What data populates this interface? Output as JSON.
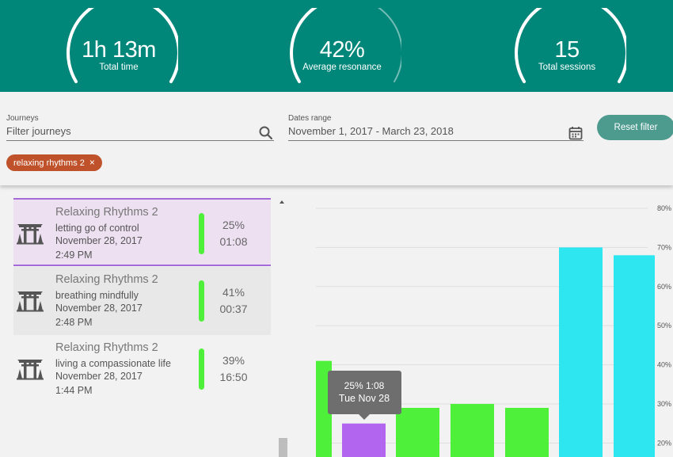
{
  "summary": [
    {
      "value": "1h 13m",
      "label": "Total time",
      "fill": 1.0
    },
    {
      "value": "42%",
      "label": "Average resonance",
      "fill": 0.42
    },
    {
      "value": "15",
      "label": "Total sessions",
      "fill": 1.0
    }
  ],
  "filters": {
    "journeys_label": "Journeys",
    "journeys_placeholder": "Filter journeys",
    "dates_label": "Dates range",
    "dates_value": "November 1, 2017 - March 23, 2018",
    "reset_label": "Reset filter",
    "chip_label": "relaxing rhythms 2",
    "chip_remove": "×"
  },
  "sessions": [
    {
      "title": "Relaxing Rhythms 2",
      "subtitle": "letting go of control",
      "date": "November 28, 2017",
      "time": "2:49 PM",
      "resonance": "25%",
      "duration": "01:08",
      "selected": true
    },
    {
      "title": "Relaxing Rhythms 2",
      "subtitle": "breathing mindfully",
      "date": "November 28, 2017",
      "time": "2:48 PM",
      "resonance": "41%",
      "duration": "00:37",
      "selected": false
    },
    {
      "title": "Relaxing Rhythms 2",
      "subtitle": "living a compassionate life",
      "date": "November 28, 2017",
      "time": "1:44 PM",
      "resonance": "39%",
      "duration": "16:50",
      "selected": false
    }
  ],
  "colors": {
    "header": "#00877a",
    "selected_bg": "#ede0f1",
    "selected_border": "#a46ad7",
    "green": "#4ef03a",
    "purple": "#b266ef",
    "cyan": "#2ee6f0",
    "chip": "#c0522b"
  },
  "chart_data": {
    "type": "bar",
    "yticks": [
      "80%",
      "70%",
      "60%",
      "50%",
      "40%",
      "30%",
      "20%"
    ],
    "ylim": [
      20,
      80
    ],
    "grid": true,
    "series": [
      {
        "values": [
          41,
          25,
          29,
          30,
          29,
          70,
          68
        ],
        "colors": [
          "#4ef03a",
          "#b266ef",
          "#4ef03a",
          "#4ef03a",
          "#4ef03a",
          "#2ee6f0",
          "#2ee6f0"
        ]
      }
    ],
    "tooltip": {
      "index": 1,
      "line1": "25% 1:08",
      "line2": "Tue Nov 28"
    }
  }
}
